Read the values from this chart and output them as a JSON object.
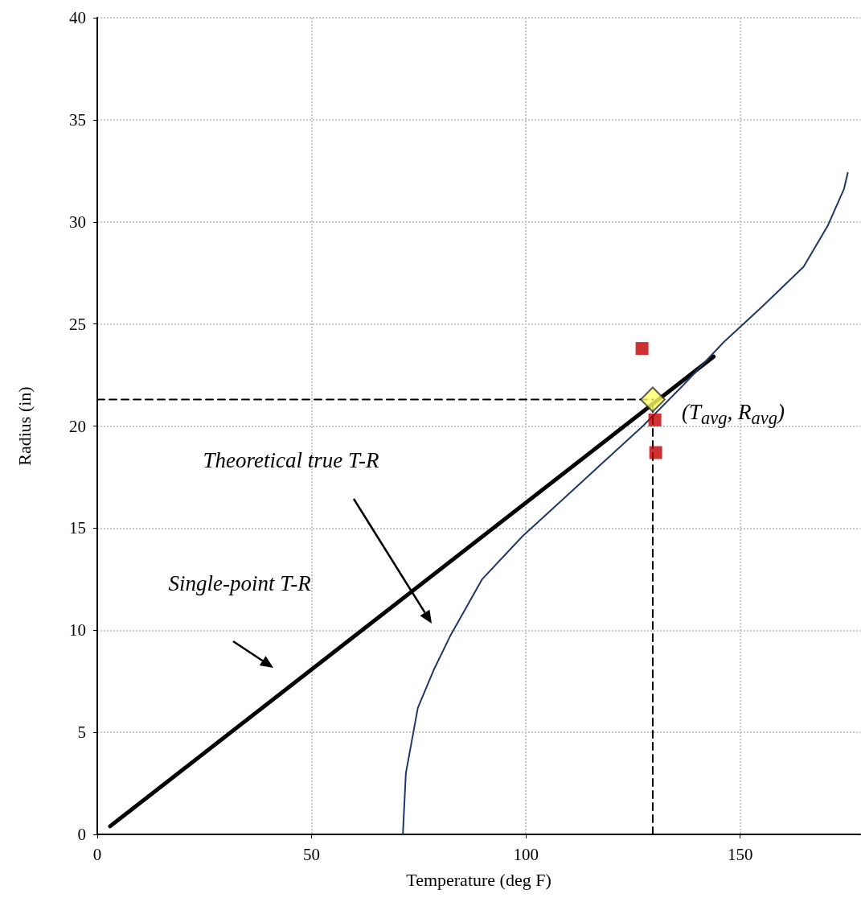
{
  "chart_data": {
    "type": "line",
    "xlabel": "Temperature (deg F)",
    "ylabel": "Radius (in)",
    "xlim": [
      0,
      178
    ],
    "xticks": [
      0,
      50,
      100,
      150
    ],
    "ylim": [
      0,
      40
    ],
    "yticks": [
      0,
      5,
      10,
      15,
      20,
      25,
      30,
      35,
      40
    ],
    "grid": true,
    "series": [
      {
        "color": "#000000",
        "marker": "none",
        "x": [
          3,
          143.8
        ],
        "values": [
          0.4,
          23.4
        ]
      },
      {
        "color": "#1f3864",
        "marker": "none",
        "x": [
          71.3,
          72,
          74.8,
          78.6,
          82.3,
          89.8,
          99.2,
          108.6,
          117.9,
          127.3,
          136.7,
          146.1,
          155.4,
          164.8,
          170.4,
          174.2,
          175.1
        ],
        "values": [
          0,
          3,
          6.2,
          8.1,
          9.7,
          12.5,
          14.6,
          16.4,
          18.2,
          20,
          22,
          24.1,
          25.9,
          27.8,
          29.8,
          31.6,
          32.4
        ]
      },
      {
        "color": "#000000",
        "marker": "none",
        "line_style": "dashed",
        "x": [
          0,
          129.6
        ],
        "values": [
          21.3,
          21.3
        ]
      },
      {
        "color": "#000000",
        "marker": "none",
        "line_style": "dashed",
        "x": [
          129.6,
          129.6
        ],
        "values": [
          0,
          21.3
        ]
      },
      {
        "type": "scatter",
        "color": "#c00000",
        "marker": "square",
        "x": [
          127.1,
          130.1,
          130.3
        ],
        "values": [
          23.8,
          20.3,
          18.7
        ]
      },
      {
        "type": "scatter",
        "color": "#ffff66",
        "marker": "diamond",
        "x": [
          129.6
        ],
        "values": [
          21.3
        ]
      }
    ],
    "annotations": [
      "Single-point T-R",
      "Theoretical true T-R",
      {
        "text": "(T$_{avg}$, R$_{avg}$)",
        "x": 129.6,
        "y": 21.3
      }
    ]
  }
}
